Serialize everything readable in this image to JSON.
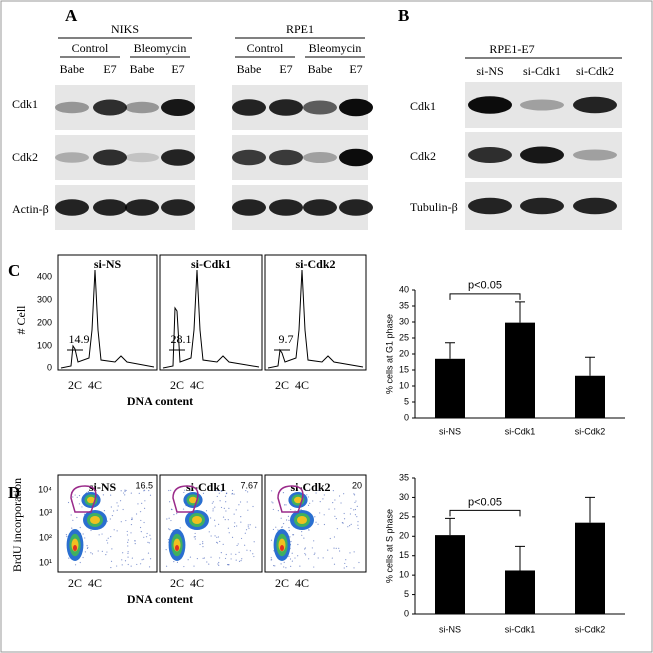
{
  "panels": {
    "a": {
      "label": "A",
      "groups": [
        {
          "name": "NIKS",
          "conditions": [
            "Control",
            "Bleomycin"
          ],
          "lanes": [
            "Babe",
            "E7",
            "Babe",
            "E7"
          ]
        },
        {
          "name": "RPE1",
          "conditions": [
            "Control",
            "Bleomycin"
          ],
          "lanes": [
            "Babe",
            "E7",
            "Babe",
            "E7"
          ]
        }
      ],
      "rows": [
        "Cdk1",
        "Cdk2",
        "Actin-β"
      ]
    },
    "b": {
      "label": "B",
      "title": "RPE1-E7",
      "lanes": [
        "si-NS",
        "si-Cdk1",
        "si-Cdk2"
      ],
      "rows": [
        "Cdk1",
        "Cdk2",
        "Tubulin-β"
      ]
    },
    "c": {
      "label": "C",
      "y_label": "# Cell",
      "y_ticks": [
        "400",
        "300",
        "200",
        "100",
        "0"
      ],
      "x_ticks": [
        "2C",
        "4C"
      ],
      "x_label": "DNA content",
      "plots": [
        {
          "title": "si-NS",
          "value": "14.9"
        },
        {
          "title": "si-Cdk1",
          "value": "28.1"
        },
        {
          "title": "si-Cdk2",
          "value": "9.7"
        }
      ]
    },
    "d": {
      "label": "D",
      "y_label": "BrdU incorporation",
      "y_ticks": [
        "10⁴",
        "10³",
        "10²",
        "10¹"
      ],
      "x_ticks": [
        "2C",
        "4C"
      ],
      "x_label": "DNA content",
      "plots": [
        {
          "title": "si-NS",
          "value": "16.5"
        },
        {
          "title": "si-Cdk1",
          "value": "7.67"
        },
        {
          "title": "si-Cdk2",
          "value": "20"
        }
      ]
    }
  },
  "chart_data": [
    {
      "type": "bar",
      "y_label": "% cells at G1 phase",
      "categories": [
        "si-NS",
        "si-Cdk1",
        "si-Cdk2"
      ],
      "values": [
        18.5,
        29.8,
        13.2
      ],
      "errors": [
        5,
        6.5,
        5.8
      ],
      "color": "#000000",
      "ylim": [
        0,
        40
      ],
      "yticks": [
        0,
        5,
        10,
        15,
        20,
        25,
        30,
        35,
        40
      ],
      "annotation": "p<0.05"
    },
    {
      "type": "bar",
      "y_label": "% cells at S phase",
      "categories": [
        "si-NS",
        "si-Cdk1",
        "si-Cdk2"
      ],
      "values": [
        20.3,
        11.2,
        23.5
      ],
      "errors": [
        4.3,
        6.2,
        6.5
      ],
      "color": "#000000",
      "ylim": [
        0,
        35
      ],
      "yticks": [
        0,
        5,
        10,
        15,
        20,
        25,
        30,
        35
      ],
      "annotation": "p<0.05"
    }
  ]
}
